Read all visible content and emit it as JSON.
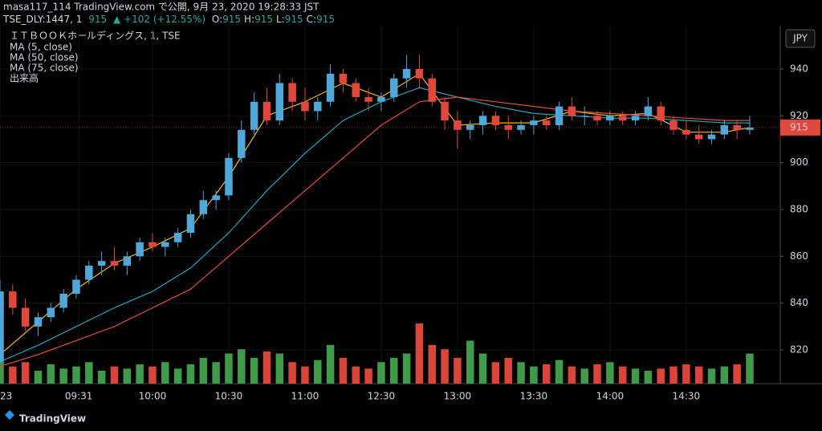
{
  "header": {
    "line1": "masa117_114 TradingView.com で公開, 9月 23, 2020 19:28:33 JST",
    "symbol": "TSE_DLY:1447, 1",
    "last": "915",
    "change": "▲ +102 (+12.55%)",
    "ohlc": [
      {
        "label": "O:",
        "value": "915"
      },
      {
        "label": "H:",
        "value": "915"
      },
      {
        "label": "L:",
        "value": "915"
      },
      {
        "label": "C:",
        "value": "915"
      }
    ]
  },
  "chart_data": {
    "type": "candlestick",
    "title": "ＩＴＢＯＯＫホールディングス, 1, TSE",
    "currency": "JPY",
    "last_price": 915,
    "up_color": "#4fa8d8",
    "down_color": "#e0483c",
    "volume_up_color": "#3f9b4a",
    "volume_down_color": "#d9453a",
    "xlim": [
      0,
      307
    ],
    "ylim": [
      805.6,
      958.5
    ],
    "yticks": [
      820,
      840,
      860,
      880,
      900,
      920,
      940
    ],
    "xticks": [
      {
        "value": 0,
        "label": "23"
      },
      {
        "value": 31,
        "label": "09:31"
      },
      {
        "value": 60,
        "label": "10:00"
      },
      {
        "value": 90,
        "label": "10:30"
      },
      {
        "value": 120,
        "label": "11:00"
      },
      {
        "value": 150,
        "label": "12:30"
      },
      {
        "value": 180,
        "label": "13:00"
      },
      {
        "value": 210,
        "label": "13:30"
      },
      {
        "value": 240,
        "label": "14:00"
      },
      {
        "value": 270,
        "label": "14:30"
      }
    ],
    "x": [
      0,
      5,
      10,
      15,
      20,
      25,
      30,
      35,
      40,
      45,
      50,
      55,
      60,
      65,
      70,
      75,
      80,
      85,
      90,
      95,
      100,
      105,
      110,
      115,
      120,
      125,
      130,
      135,
      140,
      145,
      150,
      155,
      160,
      165,
      170,
      175,
      180,
      185,
      190,
      195,
      200,
      205,
      210,
      215,
      220,
      225,
      230,
      235,
      240,
      245,
      250,
      255,
      260,
      265,
      270,
      275,
      280,
      285,
      290,
      295
    ],
    "open": [
      815,
      845,
      838,
      830,
      834,
      838,
      844,
      850,
      856,
      858,
      856,
      860,
      866,
      864,
      866,
      870,
      878,
      884,
      886,
      902,
      914,
      926,
      918,
      934,
      926,
      922,
      926,
      938,
      934,
      928,
      926,
      928,
      936,
      940,
      936,
      926,
      918,
      914,
      916,
      920,
      916,
      914,
      916,
      918,
      916,
      924,
      920,
      920,
      918,
      920,
      918,
      920,
      924,
      918,
      914,
      912,
      910,
      912,
      916,
      914
    ],
    "high": [
      850,
      848,
      842,
      836,
      840,
      846,
      852,
      858,
      862,
      864,
      862,
      868,
      870,
      868,
      872,
      880,
      888,
      888,
      904,
      918,
      930,
      932,
      938,
      936,
      932,
      928,
      942,
      940,
      936,
      932,
      930,
      938,
      946,
      946,
      938,
      928,
      922,
      918,
      922,
      922,
      920,
      918,
      920,
      920,
      926,
      928,
      924,
      922,
      922,
      922,
      922,
      928,
      926,
      920,
      918,
      916,
      914,
      918,
      918,
      920
    ],
    "low": [
      814,
      835,
      828,
      826,
      832,
      836,
      842,
      848,
      852,
      854,
      852,
      858,
      862,
      860,
      864,
      868,
      876,
      880,
      884,
      900,
      912,
      916,
      916,
      922,
      918,
      918,
      924,
      930,
      926,
      922,
      922,
      926,
      932,
      932,
      924,
      914,
      906,
      910,
      912,
      914,
      910,
      912,
      912,
      914,
      914,
      918,
      916,
      916,
      916,
      916,
      916,
      918,
      916,
      912,
      910,
      908,
      908,
      910,
      910,
      912
    ],
    "close": [
      845,
      838,
      830,
      834,
      838,
      844,
      850,
      856,
      858,
      856,
      860,
      866,
      864,
      866,
      870,
      878,
      884,
      886,
      902,
      914,
      926,
      918,
      934,
      926,
      922,
      926,
      938,
      934,
      928,
      926,
      928,
      936,
      940,
      936,
      926,
      918,
      914,
      916,
      920,
      916,
      914,
      916,
      918,
      916,
      924,
      920,
      920,
      918,
      920,
      918,
      920,
      924,
      918,
      914,
      912,
      910,
      912,
      916,
      914,
      915
    ],
    "volume_name": "出来高",
    "volume": [
      12,
      8,
      10,
      6,
      9,
      7,
      8,
      10,
      6,
      8,
      7,
      9,
      8,
      10,
      7,
      9,
      12,
      10,
      14,
      16,
      12,
      15,
      14,
      10,
      8,
      11,
      18,
      12,
      8,
      7,
      10,
      12,
      14,
      28,
      18,
      16,
      12,
      20,
      14,
      10,
      12,
      10,
      8,
      9,
      11,
      8,
      7,
      9,
      10,
      8,
      7,
      6,
      7,
      8,
      9,
      8,
      7,
      8,
      9,
      14
    ],
    "moving_averages": [
      {
        "name": "MA (5, close)",
        "color": "#f0b429",
        "x": [
          0,
          15,
          30,
          45,
          60,
          75,
          90,
          105,
          120,
          135,
          150,
          165,
          180,
          195,
          210,
          225,
          240,
          255,
          270,
          285,
          295
        ],
        "values": [
          818,
          832,
          846,
          857,
          864,
          872,
          894,
          920,
          926,
          934,
          928,
          938,
          916,
          917,
          917,
          922,
          920,
          921,
          913,
          913,
          915
        ]
      },
      {
        "name": "MA (50, close)",
        "color": "#26a5b8",
        "x": [
          0,
          15,
          30,
          45,
          60,
          75,
          90,
          105,
          120,
          135,
          150,
          165,
          180,
          195,
          210,
          225,
          240,
          255,
          270,
          285,
          295
        ],
        "values": [
          815,
          822,
          830,
          838,
          845,
          855,
          870,
          888,
          904,
          918,
          926,
          932,
          928,
          924,
          921,
          920,
          919,
          919,
          918,
          917,
          917
        ]
      },
      {
        "name": "MA (75, close)",
        "color": "#e84a3c",
        "x": [
          0,
          15,
          30,
          45,
          60,
          75,
          90,
          105,
          120,
          135,
          150,
          165,
          180,
          195,
          210,
          225,
          240,
          255,
          270,
          285,
          295
        ],
        "values": [
          813,
          818,
          824,
          830,
          838,
          846,
          860,
          874,
          888,
          902,
          916,
          926,
          928,
          926,
          924,
          922,
          921,
          920,
          919,
          918,
          918
        ]
      }
    ]
  },
  "footer": {
    "brand": "TradingView"
  }
}
